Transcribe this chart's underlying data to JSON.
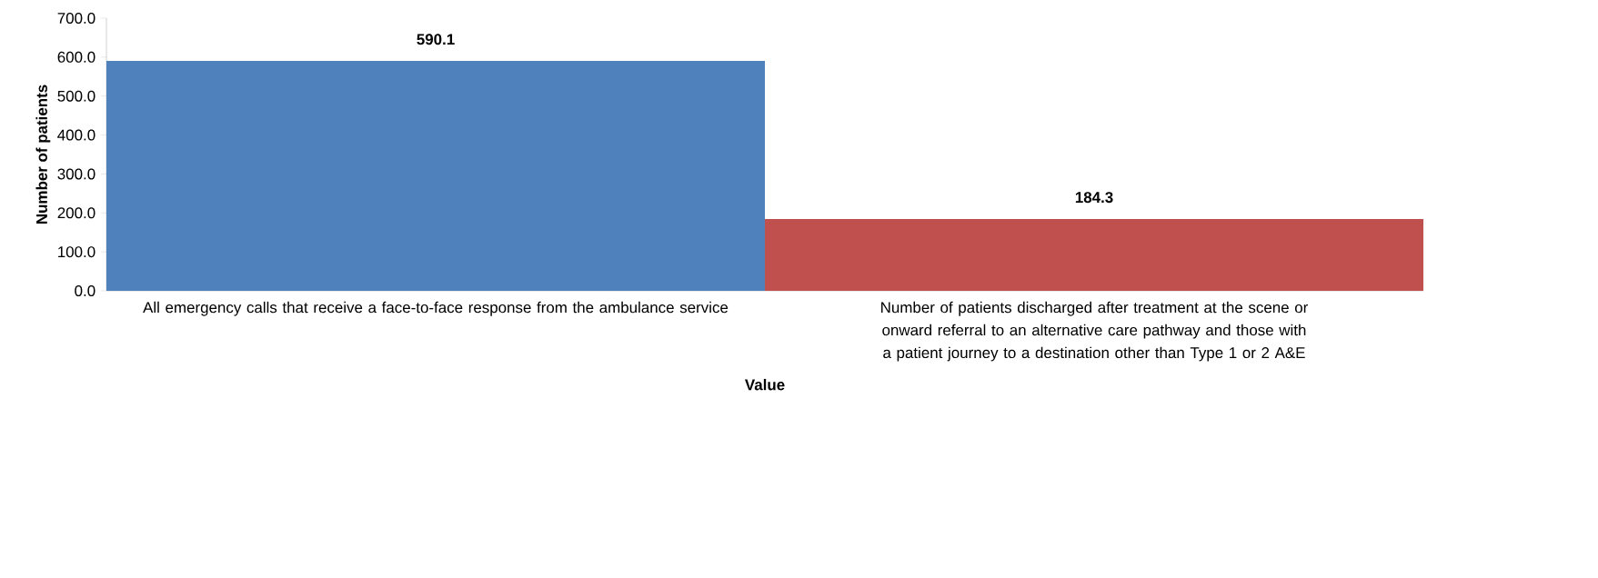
{
  "chart_data": {
    "type": "bar",
    "xlabel": "Value",
    "ylabel": "Number of patients",
    "categories": [
      "All emergency calls that receive a face-to-face response from the ambulance service",
      "Number of patients discharged after treatment at the scene or onward referral to an alternative care pathway and those with a patient journey to a destination other than Type 1 or 2 A&E"
    ],
    "values": [
      590.1,
      184.3
    ],
    "colors": [
      "#4f81bd",
      "#c0504d"
    ],
    "ylim": [
      0,
      700
    ],
    "yticks": [
      {
        "value": 0,
        "label": "0.0"
      },
      {
        "value": 100,
        "label": "100.0"
      },
      {
        "value": 200,
        "label": "200.0"
      },
      {
        "value": 300,
        "label": "300.0"
      },
      {
        "value": 400,
        "label": "400.0"
      },
      {
        "value": 500,
        "label": "500.0"
      },
      {
        "value": 600,
        "label": "600.0"
      },
      {
        "value": 700,
        "label": "700.0"
      }
    ],
    "data_labels": true
  }
}
